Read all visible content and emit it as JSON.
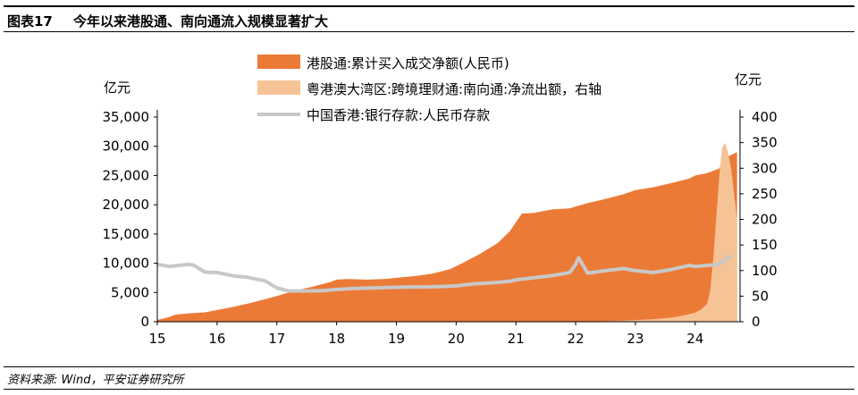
{
  "header": {
    "figure_label": "图表17",
    "title": "今年以来港股通、南向通流入规模显著扩大"
  },
  "footer": {
    "source": "资料来源: Wind，平安证券研究所"
  },
  "chart_data": {
    "type": "area",
    "left_axis": {
      "unit": "亿元",
      "ticks": [
        "0",
        "5,000",
        "10,000",
        "15,000",
        "20,000",
        "25,000",
        "30,000",
        "35,000"
      ],
      "range": [
        0,
        35000
      ]
    },
    "right_axis": {
      "unit": "亿元",
      "ticks": [
        "0",
        "50",
        "100",
        "150",
        "200",
        "250",
        "300",
        "350",
        "400"
      ],
      "range": [
        0,
        400
      ]
    },
    "x_ticks": [
      "15",
      "16",
      "17",
      "18",
      "19",
      "20",
      "21",
      "22",
      "23",
      "24"
    ],
    "x_range": [
      15.0,
      24.75
    ],
    "legend": [
      "港股通:累计买入成交净额(人民币)",
      "粤港澳大湾区:跨境理财通:南向通:净流出额，右轴",
      "中国香港:银行存款:人民币存款"
    ],
    "colors": {
      "hk_connect": "#ec7a37",
      "wmc_south": "#f6c396",
      "rmb_deposits": "#c8c8c8"
    },
    "series": [
      {
        "name": "港股通:累计买入成交净额(人民币)",
        "axis": "left",
        "x": [
          15.0,
          15.2,
          15.3,
          15.5,
          15.8,
          16.0,
          16.3,
          16.6,
          17.0,
          17.3,
          17.6,
          17.9,
          18.0,
          18.2,
          18.5,
          18.8,
          19.0,
          19.3,
          19.6,
          19.9,
          20.1,
          20.4,
          20.7,
          20.9,
          21.0,
          21.1,
          21.3,
          21.6,
          21.9,
          22.0,
          22.2,
          22.5,
          22.8,
          23.0,
          23.3,
          23.6,
          23.9,
          24.0,
          24.2,
          24.4,
          24.5,
          24.7
        ],
        "y": [
          300,
          800,
          1200,
          1400,
          1600,
          2000,
          2600,
          3300,
          4400,
          5300,
          6000,
          6800,
          7200,
          7300,
          7200,
          7300,
          7500,
          7800,
          8200,
          9000,
          10000,
          11600,
          13500,
          15500,
          17000,
          18500,
          18600,
          19200,
          19400,
          19700,
          20300,
          21000,
          21800,
          22500,
          23000,
          23700,
          24500,
          25000,
          25400,
          26200,
          28000,
          29000
        ]
      },
      {
        "name": "粤港澳大湾区:跨境理财通:南向通:净流出额，右轴",
        "axis": "right",
        "x": [
          22.0,
          22.5,
          23.0,
          23.3,
          23.6,
          23.8,
          24.0,
          24.1,
          24.2,
          24.25,
          24.3,
          24.35,
          24.4,
          24.45,
          24.5,
          24.55,
          24.6,
          24.65,
          24.7
        ],
        "y": [
          0,
          1,
          3,
          5,
          8,
          12,
          18,
          24,
          35,
          60,
          120,
          200,
          280,
          340,
          350,
          330,
          300,
          250,
          200
        ]
      },
      {
        "name": "中国香港:银行存款:人民币存款",
        "axis": "right",
        "x": [
          15.0,
          15.2,
          15.5,
          15.6,
          15.8,
          16.0,
          16.3,
          16.5,
          16.8,
          17.0,
          17.2,
          17.5,
          17.8,
          18.0,
          18.3,
          18.6,
          18.9,
          19.2,
          19.5,
          19.8,
          20.0,
          20.3,
          20.6,
          20.9,
          21.0,
          21.3,
          21.6,
          21.9,
          22.0,
          22.05,
          22.2,
          22.5,
          22.8,
          23.0,
          23.3,
          23.6,
          23.9,
          24.0,
          24.2,
          24.4,
          24.5,
          24.6
        ],
        "y": [
          112,
          108,
          112,
          111,
          97,
          96,
          89,
          87,
          80,
          66,
          60,
          60,
          61,
          63,
          65,
          66,
          67,
          68,
          68,
          69,
          70,
          74,
          76,
          79,
          82,
          86,
          90,
          96,
          112,
          125,
          95,
          100,
          104,
          100,
          96,
          102,
          110,
          108,
          110,
          112,
          120,
          130
        ]
      }
    ]
  }
}
